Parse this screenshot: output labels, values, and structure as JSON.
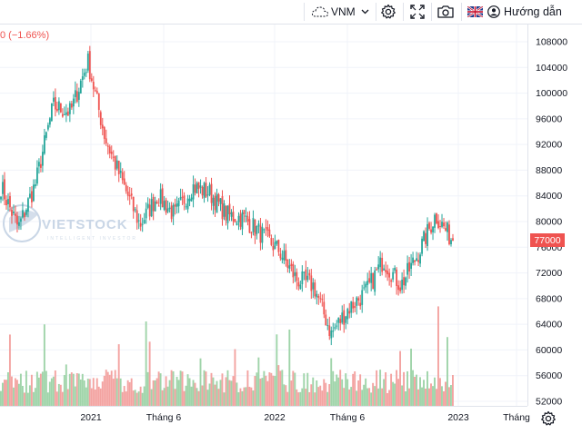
{
  "toolbar": {
    "symbol": "VNM",
    "help_label": "Hướng dẫn",
    "icons": [
      "cloud-icon",
      "chevron-down-icon",
      "gear-icon",
      "fullscreen-icon",
      "camera-icon",
      "uk-flag-icon",
      "user-icon"
    ]
  },
  "chart": {
    "change_text": "0 (−1.66%)",
    "last_price": "77000",
    "watermark": "VIETSTOCK",
    "watermark_sub": "INTELLIGENT INVESTOR",
    "colors": {
      "up": "#26a69a",
      "down": "#ef5350",
      "vol_up": "#9fd4a9",
      "vol_down": "#f3a3a1",
      "grid": "#f0f3fa"
    }
  },
  "chart_data": {
    "type": "candlestick",
    "price_axis_ticks": [
      "108000",
      "104000",
      "100000",
      "96000",
      "92000",
      "88000",
      "84000",
      "80000",
      "76000",
      "72000",
      "68000",
      "64000",
      "60000",
      "56000",
      "52000"
    ],
    "time_axis_ticks": [
      "2021",
      "Tháng 6",
      "2022",
      "Tháng 6",
      "2023",
      "Tháng"
    ],
    "ylim": [
      51000,
      109000
    ],
    "close_series": [
      [
        "2020-10",
        85500
      ],
      [
        "2020-11",
        79000
      ],
      [
        "2020-12",
        86000
      ],
      [
        "2021-01",
        98000
      ],
      [
        "2021-02",
        97000
      ],
      [
        "2021-03",
        105000
      ],
      [
        "2021-04",
        93000
      ],
      [
        "2021-05",
        86000
      ],
      [
        "2021-06",
        79500
      ],
      [
        "2021-07",
        84000
      ],
      [
        "2021-08",
        81000
      ],
      [
        "2021-09",
        85500
      ],
      [
        "2021-10",
        84500
      ],
      [
        "2021-11",
        81000
      ],
      [
        "2021-12",
        80500
      ],
      [
        "2022-01",
        78000
      ],
      [
        "2022-02",
        75500
      ],
      [
        "2022-03",
        71000
      ],
      [
        "2022-04",
        70000
      ],
      [
        "2022-05",
        62500
      ],
      [
        "2022-06",
        66500
      ],
      [
        "2022-07",
        69000
      ],
      [
        "2022-08",
        74000
      ],
      [
        "2022-09",
        70000
      ],
      [
        "2022-10",
        75000
      ],
      [
        "2022-11",
        81000
      ],
      [
        "2022-12",
        77000
      ]
    ]
  }
}
